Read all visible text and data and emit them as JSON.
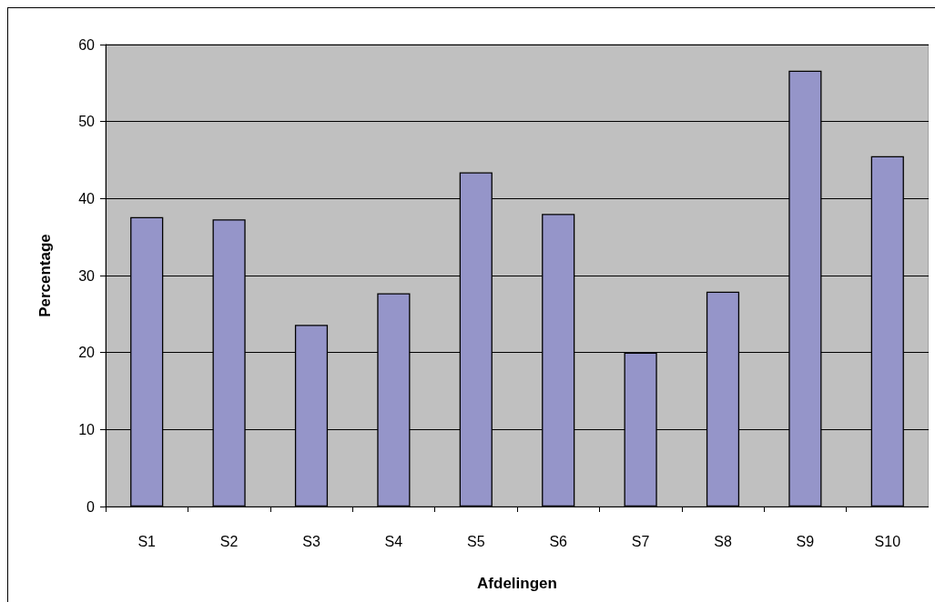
{
  "chart_data": {
    "type": "bar",
    "xlabel": "Afdelingen",
    "ylabel": "Percentage",
    "categories": [
      "S1",
      "S2",
      "S3",
      "S4",
      "S5",
      "S6",
      "S7",
      "S8",
      "S9",
      "S10"
    ],
    "values": [
      37.6,
      37.3,
      23.6,
      27.7,
      43.4,
      38.0,
      20.0,
      27.9,
      56.6,
      45.5
    ],
    "color": "#9595c9",
    "ylim": [
      0,
      60
    ],
    "yticks": [
      0,
      10,
      20,
      30,
      40,
      50,
      60
    ],
    "grid": "y"
  }
}
